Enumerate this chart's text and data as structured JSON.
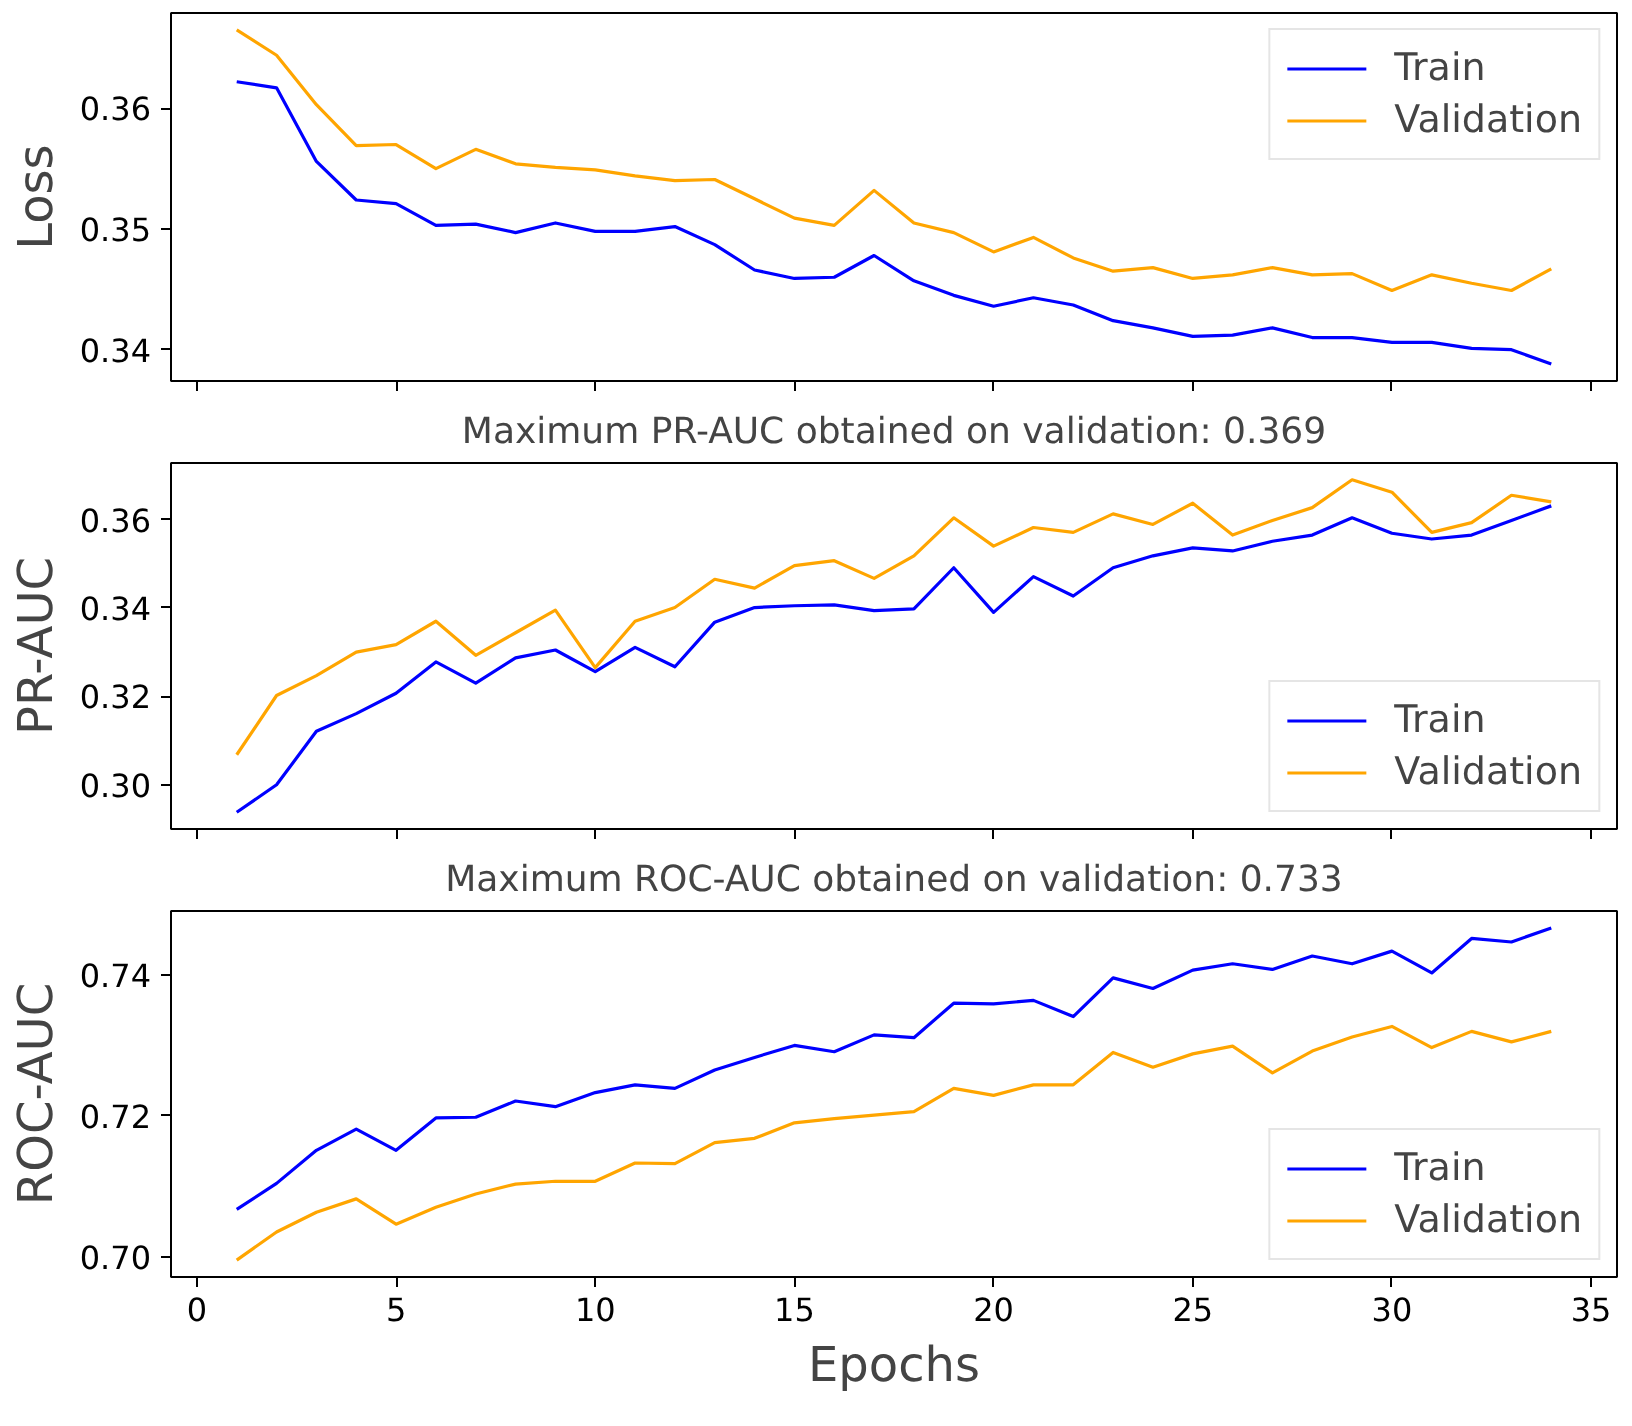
{
  "chart_data": [
    {
      "type": "line",
      "ylabel": "Loss",
      "x": [
        1,
        2,
        3,
        4,
        5,
        6,
        7,
        8,
        9,
        10,
        11,
        12,
        13,
        14,
        15,
        16,
        17,
        18,
        19,
        20,
        21,
        22,
        23,
        24,
        25,
        26,
        27,
        28,
        29,
        30,
        31,
        32,
        33,
        34
      ],
      "xlim": [
        -0.65,
        35.65
      ],
      "xticks": [
        0,
        5,
        10,
        15,
        20,
        25,
        30,
        35
      ],
      "ylim": [
        0.3374,
        0.3679
      ],
      "yticks": [
        0.34,
        0.35,
        0.36
      ],
      "tick_labels": "y",
      "legend": "top right",
      "series": [
        {
          "name": "Train",
          "color": "#0000ff",
          "values": [
            0.3622,
            0.3617,
            0.3556,
            0.3524,
            0.3521,
            0.3503,
            0.3504,
            0.3497,
            0.3505,
            0.3498,
            0.3498,
            0.3502,
            0.3487,
            0.3466,
            0.3459,
            0.346,
            0.3478,
            0.3457,
            0.3445,
            0.3436,
            0.3443,
            0.3437,
            0.3424,
            0.3418,
            0.3411,
            0.3412,
            0.3418,
            0.341,
            0.341,
            0.3406,
            0.3406,
            0.3401,
            0.34,
            0.3388
          ]
        },
        {
          "name": "Validation",
          "color": "#ffa500",
          "values": [
            0.3665,
            0.3644,
            0.3603,
            0.3569,
            0.357,
            0.355,
            0.3566,
            0.3554,
            0.3551,
            0.3549,
            0.3544,
            0.354,
            0.3541,
            0.3525,
            0.3509,
            0.3503,
            0.3532,
            0.3505,
            0.3497,
            0.3481,
            0.3493,
            0.3476,
            0.3465,
            0.3468,
            0.3459,
            0.3462,
            0.3468,
            0.3462,
            0.3463,
            0.3449,
            0.3462,
            0.3455,
            0.3449,
            0.3467
          ]
        }
      ]
    },
    {
      "type": "line",
      "title": "Maximum PR-AUC obtained on validation: 0.369",
      "ylabel": "PR-AUC",
      "x": [
        1,
        2,
        3,
        4,
        5,
        6,
        7,
        8,
        9,
        10,
        11,
        12,
        13,
        14,
        15,
        16,
        17,
        18,
        19,
        20,
        21,
        22,
        23,
        24,
        25,
        26,
        27,
        28,
        29,
        30,
        31,
        32,
        33,
        34
      ],
      "xlim": [
        -0.65,
        35.65
      ],
      "xticks": [
        0,
        5,
        10,
        15,
        20,
        25,
        30,
        35
      ],
      "ylim": [
        0.29,
        0.3728
      ],
      "yticks": [
        {
          "value": 0.3,
          "label": "0.30"
        },
        0.32,
        0.34,
        0.36
      ],
      "tick_labels": "y",
      "legend": "bottom right",
      "series": [
        {
          "name": "Train",
          "color": "#0000ff",
          "values": [
            0.2938,
            0.3,
            0.3121,
            0.3161,
            0.3207,
            0.3278,
            0.323,
            0.3287,
            0.3305,
            0.3256,
            0.3311,
            0.3267,
            0.3368,
            0.3401,
            0.3405,
            0.3407,
            0.3394,
            0.3398,
            0.3491,
            0.339,
            0.3471,
            0.3427,
            0.3491,
            0.3518,
            0.3536,
            0.3529,
            0.3551,
            0.3565,
            0.3604,
            0.3569,
            0.3556,
            0.3565,
            0.3598,
            0.3631
          ]
        },
        {
          "name": "Validation",
          "color": "#ffa500",
          "values": [
            0.3068,
            0.3202,
            0.3247,
            0.33,
            0.3317,
            0.337,
            0.3293,
            0.3344,
            0.3395,
            0.3265,
            0.337,
            0.3401,
            0.3465,
            0.3445,
            0.3496,
            0.3507,
            0.3467,
            0.3518,
            0.3604,
            0.354,
            0.3582,
            0.3571,
            0.3613,
            0.3589,
            0.3637,
            0.3565,
            0.3598,
            0.3627,
            0.369,
            0.3662,
            0.3571,
            0.3593,
            0.3655,
            0.364
          ]
        }
      ]
    },
    {
      "type": "line",
      "title": "Maximum ROC-AUC obtained on validation: 0.733",
      "ylabel": "ROC-AUC",
      "xlabel": "Epochs",
      "x": [
        1,
        2,
        3,
        4,
        5,
        6,
        7,
        8,
        9,
        10,
        11,
        12,
        13,
        14,
        15,
        16,
        17,
        18,
        19,
        20,
        21,
        22,
        23,
        24,
        25,
        26,
        27,
        28,
        29,
        30,
        31,
        32,
        33,
        34
      ],
      "xlim": [
        -0.65,
        35.65
      ],
      "xticks": [
        0,
        5,
        10,
        15,
        20,
        25,
        30,
        35
      ],
      "ylim": [
        0.6971,
        0.7491
      ],
      "yticks": [
        {
          "value": 0.7,
          "label": "0.70"
        },
        0.72,
        0.74
      ],
      "legend": "bottom right",
      "series": [
        {
          "name": "Train",
          "color": "#0000ff",
          "values": [
            0.7067,
            0.7104,
            0.7151,
            0.7181,
            0.7151,
            0.7197,
            0.7198,
            0.7221,
            0.7213,
            0.7233,
            0.7244,
            0.7239,
            0.7265,
            0.7283,
            0.73,
            0.7291,
            0.7315,
            0.7311,
            0.736,
            0.7359,
            0.7364,
            0.7341,
            0.7396,
            0.7381,
            0.7407,
            0.7416,
            0.7408,
            0.7427,
            0.7416,
            0.7434,
            0.7403,
            0.7452,
            0.7447,
            0.7467
          ]
        },
        {
          "name": "Validation",
          "color": "#ffa500",
          "values": [
            0.6995,
            0.7035,
            0.7063,
            0.7082,
            0.7046,
            0.707,
            0.7089,
            0.7103,
            0.7107,
            0.7107,
            0.7133,
            0.7132,
            0.7162,
            0.7168,
            0.719,
            0.7196,
            0.7201,
            0.7206,
            0.7239,
            0.7229,
            0.7244,
            0.7244,
            0.729,
            0.7269,
            0.7288,
            0.7299,
            0.7261,
            0.7292,
            0.7312,
            0.7327,
            0.7297,
            0.732,
            0.7305,
            0.732
          ]
        }
      ]
    }
  ]
}
